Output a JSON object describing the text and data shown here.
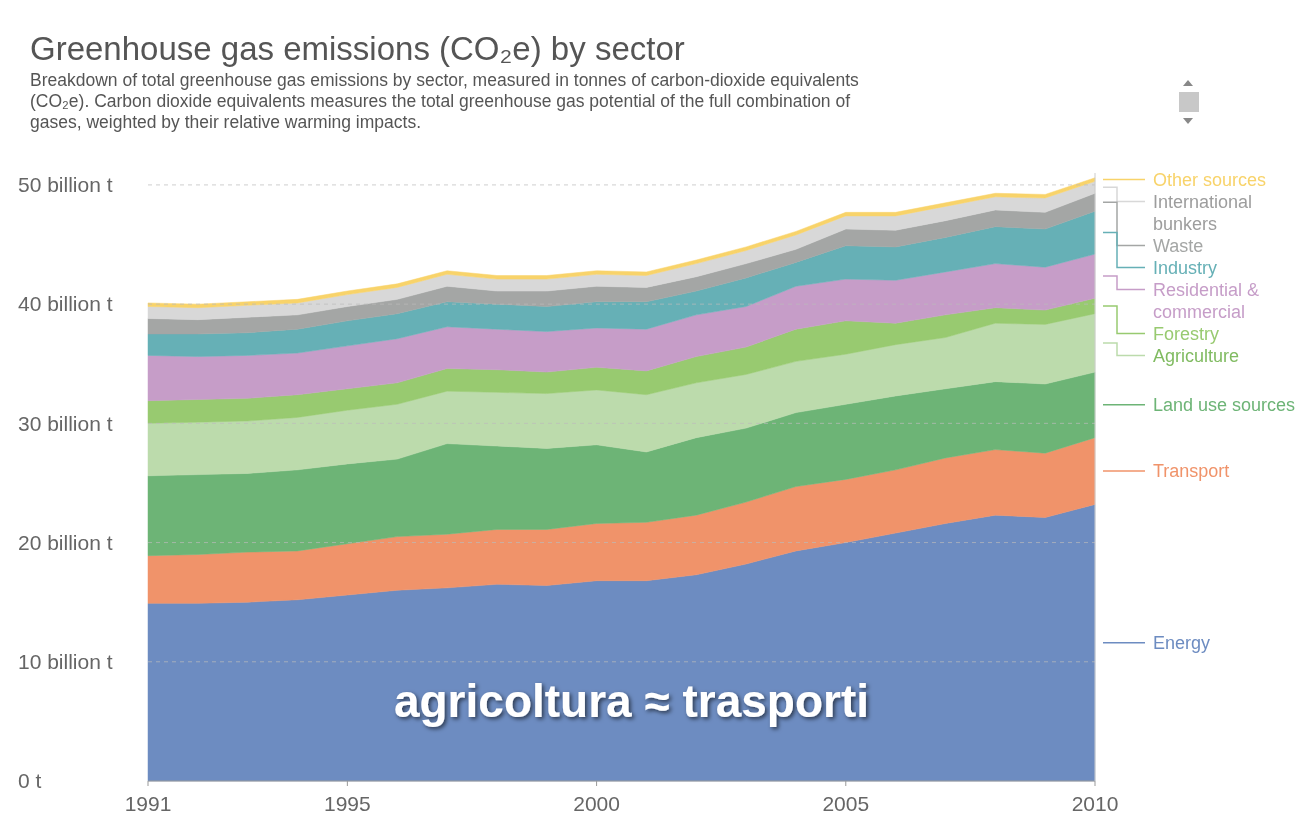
{
  "chart_data": {
    "type": "area",
    "stacked": true,
    "title": "Greenhouse gas emissions (CO₂e) by sector",
    "subtitle": "Breakdown of total greenhouse gas emissions by sector, measured in tonnes of carbon-dioxide equivalents (CO₂e). Carbon dioxide equivalents measures the total greenhouse gas potential of the full combination of gases, weighted by their relative warming impacts.",
    "annotations": [
      "agricoltura ≈ trasporti"
    ],
    "x": [
      1991,
      1992,
      1993,
      1994,
      1995,
      1996,
      1997,
      1998,
      1999,
      2000,
      2001,
      2002,
      2003,
      2004,
      2005,
      2006,
      2007,
      2008,
      2009,
      2010
    ],
    "xlim": [
      1991,
      2010
    ],
    "xticks": [
      1991,
      1995,
      2000,
      2005,
      2010
    ],
    "ylim": [
      0,
      51
    ],
    "yticks": [
      {
        "value": 0,
        "label": "0 t"
      },
      {
        "value": 10,
        "label": "10 billion t"
      },
      {
        "value": 20,
        "label": "20 billion t"
      },
      {
        "value": 30,
        "label": "30 billion t"
      },
      {
        "value": 40,
        "label": "40 billion t"
      },
      {
        "value": 50,
        "label": "50 billion t"
      }
    ],
    "grid": "y",
    "legend": "right",
    "series": [
      {
        "name": "Energy",
        "color": "#6d8cc1",
        "values": [
          14.9,
          14.9,
          15.0,
          15.2,
          15.6,
          16.0,
          16.2,
          16.5,
          16.4,
          16.8,
          16.8,
          17.3,
          18.2,
          19.3,
          20.0,
          20.8,
          21.6,
          22.3,
          22.1,
          23.2
        ]
      },
      {
        "name": "Transport",
        "color": "#f0936a",
        "values": [
          4.0,
          4.1,
          4.2,
          4.1,
          4.3,
          4.5,
          4.5,
          4.6,
          4.7,
          4.8,
          4.9,
          5.0,
          5.2,
          5.4,
          5.3,
          5.3,
          5.5,
          5.5,
          5.4,
          5.6
        ]
      },
      {
        "name": "Land use sources",
        "color": "#6db476",
        "values": [
          6.7,
          6.7,
          6.6,
          6.8,
          6.7,
          6.5,
          7.6,
          7.0,
          6.8,
          6.6,
          5.9,
          6.5,
          6.2,
          6.2,
          6.3,
          6.2,
          5.8,
          5.7,
          5.8,
          5.5
        ]
      },
      {
        "name": "Agriculture",
        "color": "#bcdbac",
        "values": [
          4.4,
          4.4,
          4.4,
          4.4,
          4.5,
          4.6,
          4.4,
          4.5,
          4.6,
          4.6,
          4.8,
          4.6,
          4.5,
          4.3,
          4.2,
          4.3,
          4.3,
          4.9,
          5.0,
          4.9
        ]
      },
      {
        "name": "Forestry",
        "color": "#98ca70",
        "values": [
          1.9,
          1.9,
          1.9,
          1.9,
          1.8,
          1.8,
          1.9,
          1.9,
          1.8,
          1.9,
          2.0,
          2.2,
          2.3,
          2.7,
          2.8,
          1.8,
          1.9,
          1.3,
          1.2,
          1.3
        ]
      },
      {
        "name": "Residential & commercial",
        "color": "#c69dc8",
        "values": [
          3.8,
          3.6,
          3.6,
          3.5,
          3.6,
          3.7,
          3.5,
          3.4,
          3.4,
          3.3,
          3.5,
          3.5,
          3.4,
          3.6,
          3.5,
          3.6,
          3.6,
          3.7,
          3.6,
          3.7
        ]
      },
      {
        "name": "Industry",
        "color": "#66b0b6",
        "values": [
          1.8,
          1.9,
          1.9,
          2.0,
          2.1,
          2.1,
          2.1,
          2.1,
          2.1,
          2.2,
          2.3,
          2.0,
          2.4,
          2.0,
          2.8,
          2.8,
          2.9,
          3.1,
          3.2,
          3.6
        ]
      },
      {
        "name": "Waste",
        "color": "#a4a6a5",
        "values": [
          1.3,
          1.2,
          1.3,
          1.2,
          1.2,
          1.2,
          1.3,
          1.1,
          1.3,
          1.3,
          1.2,
          1.2,
          1.2,
          1.1,
          1.4,
          1.4,
          1.4,
          1.4,
          1.4,
          1.5
        ]
      },
      {
        "name": "International bunkers",
        "color": "#d8d8d8",
        "values": [
          1.0,
          1.0,
          1.0,
          1.0,
          1.0,
          1.0,
          1.0,
          1.0,
          1.0,
          1.0,
          1.0,
          1.1,
          1.1,
          1.2,
          1.1,
          1.2,
          1.2,
          1.1,
          1.2,
          1.0
        ]
      },
      {
        "name": "Other sources",
        "color": "#f8d36a",
        "values": [
          0.3,
          0.3,
          0.3,
          0.3,
          0.3,
          0.3,
          0.3,
          0.3,
          0.3,
          0.3,
          0.3,
          0.3,
          0.3,
          0.3,
          0.3,
          0.3,
          0.3,
          0.3,
          0.3,
          0.3
        ]
      }
    ]
  }
}
